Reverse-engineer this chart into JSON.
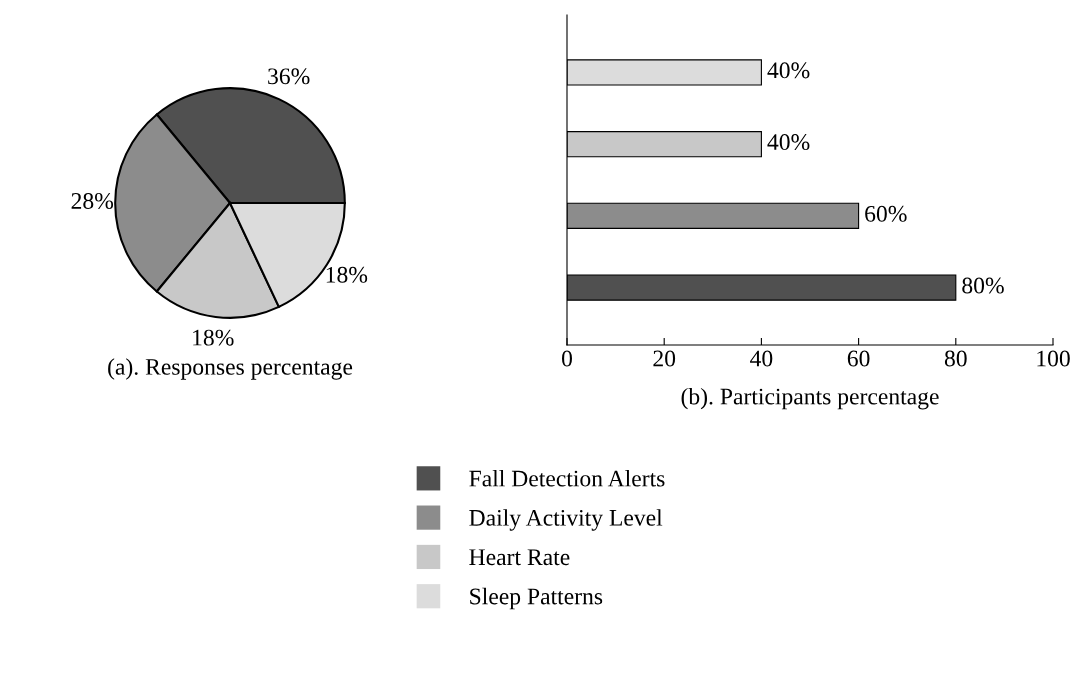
{
  "chart_data": [
    {
      "type": "pie",
      "title": "(a). Responses percentage",
      "categories": [
        "Fall Detection Alerts",
        "Daily Activity Level",
        "Heart Rate",
        "Sleep Patterns"
      ],
      "values": [
        36,
        28,
        18,
        18
      ],
      "value_labels": [
        "36%",
        "28%",
        "18%",
        "18%"
      ],
      "colors": [
        "#505050",
        "#8c8c8c",
        "#c8c8c8",
        "#dcdcdc"
      ],
      "legend": "bottom"
    },
    {
      "type": "bar",
      "orientation": "horizontal",
      "title": "(b). Participants percentage",
      "categories": [
        null,
        null,
        null,
        null
      ],
      "values": [
        40,
        40,
        60,
        80
      ],
      "value_labels": [
        "40%",
        "40%",
        "60%",
        "80%"
      ],
      "colors": [
        "#dcdcdc",
        "#c8c8c8",
        "#8c8c8c",
        "#505050"
      ],
      "xlim": [
        0,
        100
      ],
      "xticks": [
        0,
        20,
        40,
        60,
        80,
        100
      ],
      "tick_labels": "x"
    }
  ]
}
